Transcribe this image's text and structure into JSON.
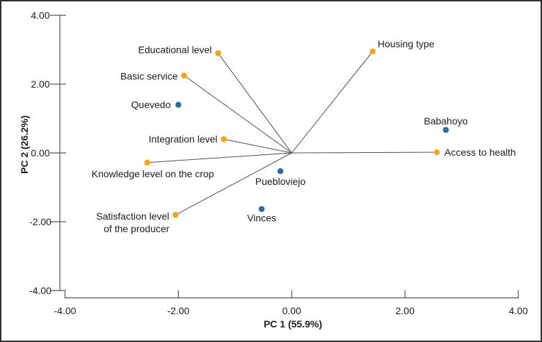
{
  "chart_data": {
    "type": "scatter",
    "subtype": "pca-biplot",
    "title": "",
    "xlabel": "PC 1 (55.9%)",
    "ylabel": "PC 2 (26.2%)",
    "xlim": [
      -4,
      4
    ],
    "ylim": [
      -4,
      4
    ],
    "x_ticks": [
      "-4.00",
      "-2.00",
      "0.00",
      "2.00",
      "4.00"
    ],
    "y_ticks": [
      "-4.00",
      "-2.00",
      "0.00",
      "2.00",
      "4.00"
    ],
    "grid": false,
    "legend": "none",
    "origin": [
      0,
      0
    ],
    "colors": {
      "variable_marker": "#F5A51D",
      "municipality_marker": "#2E6BA1",
      "vector_line": "#4b4b4b",
      "axis_line": "#555555",
      "text": "#1c1c1c"
    },
    "series": [
      {
        "name": "variables",
        "marker": "circle",
        "color": "#F5A51D",
        "vectors_from_origin": true,
        "points": [
          {
            "label": "Educational level",
            "x": -1.3,
            "y": 2.9,
            "label_pos": "left",
            "label_dy": -5
          },
          {
            "label": "Basic service",
            "x": -1.9,
            "y": 2.25,
            "label_pos": "left",
            "label_dy": 1
          },
          {
            "label": "Integration level",
            "x": -1.2,
            "y": 0.4,
            "label_pos": "left"
          },
          {
            "label": "Knowledge level on the crop",
            "x": -2.55,
            "y": -0.28,
            "label_pos": "below",
            "label_dx": 8,
            "label_dy": 1
          },
          {
            "label": "Satisfaction level\nof the producer",
            "x": -2.05,
            "y": -1.8,
            "label_pos": "left",
            "label_dy": 2
          },
          {
            "label": "Housing type",
            "x": 1.43,
            "y": 2.95,
            "label_pos": "above-right"
          },
          {
            "label": "Access to health",
            "x": 2.56,
            "y": 0.02,
            "label_pos": "right"
          }
        ]
      },
      {
        "name": "municipalities",
        "marker": "circle",
        "color": "#2E6BA1",
        "vectors_from_origin": false,
        "points": [
          {
            "label": "Quevedo",
            "x": -2.0,
            "y": 1.4,
            "label_pos": "left",
            "label_dx": -2
          },
          {
            "label": "Babahoyo",
            "x": 2.72,
            "y": 0.67,
            "label_pos": "above"
          },
          {
            "label": "Puebloviejo",
            "x": -0.2,
            "y": -0.53,
            "label_pos": "below"
          },
          {
            "label": "Vinces",
            "x": -0.53,
            "y": -1.63,
            "label_pos": "below",
            "label_dy": -2
          }
        ]
      }
    ]
  }
}
